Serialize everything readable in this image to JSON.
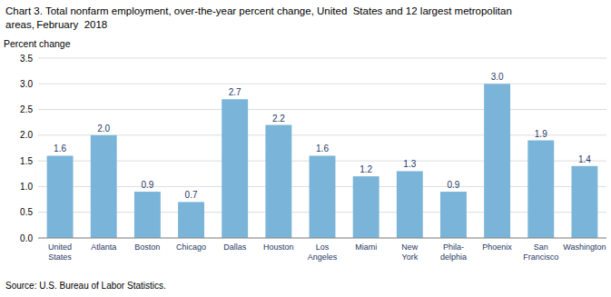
{
  "chart_data": {
    "type": "bar",
    "title": "Chart 3. Total nonfarm employment, over-the-year percent change, United  States and 12 largest metropolitan",
    "subtitle": "areas, February  2018",
    "y_label": "Percent change",
    "annotations": [
      "Source: U.S. Bureau of Labor Statistics."
    ],
    "categories": [
      "United\nStates",
      "Atlanta",
      "Boston",
      "Chicago",
      "Dallas",
      "Houston",
      "Los\nAngeles",
      "Miami",
      "New\nYork",
      "Phila-\ndelphia",
      "Phoenix",
      "San\nFrancisco",
      "Washington"
    ],
    "values": [
      1.6,
      2.0,
      0.9,
      0.7,
      2.7,
      2.2,
      1.6,
      1.2,
      1.3,
      0.9,
      3.0,
      1.9,
      1.4
    ],
    "value_labels": [
      "1.6",
      "2.0",
      "0.9",
      "0.7",
      "2.7",
      "2.2",
      "1.6",
      "1.2",
      "1.3",
      "0.9",
      "3.0",
      "1.9",
      "1.4"
    ],
    "data_labels": true,
    "color": "#7ab4d8",
    "ylim": [
      0,
      3.5
    ],
    "yticks": [
      {
        "value": 0.0,
        "label": "0.0"
      },
      0.5,
      {
        "value": 1.0,
        "label": "1.0"
      },
      1.5,
      {
        "value": 2.0,
        "label": "2.0"
      },
      2.5,
      {
        "value": 3.0,
        "label": "3.0"
      },
      3.5
    ],
    "grid": true
  }
}
